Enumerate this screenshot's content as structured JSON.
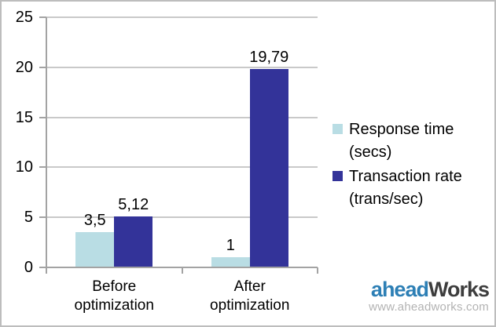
{
  "chart_data": {
    "type": "bar",
    "categories": [
      {
        "lines": [
          "Before",
          "optimization"
        ]
      },
      {
        "lines": [
          "After",
          "optimization"
        ]
      }
    ],
    "series": [
      {
        "name": "Response time (secs)",
        "legend_label": "Response time\n(secs)",
        "color": "#b9dde4",
        "values": [
          3.5,
          1
        ],
        "value_labels": [
          "3,5",
          "1"
        ]
      },
      {
        "name": "Transaction rate (trans/sec)",
        "legend_label": "Transaction rate\n(trans/sec)",
        "color": "#333399",
        "values": [
          5.12,
          19.79
        ],
        "value_labels": [
          "5,12",
          "19,79"
        ]
      }
    ],
    "title": "",
    "xlabel": "",
    "ylabel": "",
    "ylim": [
      0,
      25
    ],
    "yticks": [
      0,
      5,
      10,
      15,
      20,
      25
    ],
    "grid": true,
    "legend_position": "right"
  },
  "colors": {
    "gridline": "#c9c9c9",
    "axis": "#a3a3a3",
    "frame_border": "#bdbdbd",
    "logo_primary": "#2d7fb5",
    "logo_secondary": "#3d3d3d",
    "logo_url": "#b3b3b3"
  },
  "logo": {
    "brand_primary": "ahead",
    "brand_secondary": "Works",
    "url": "www.aheadworks.com"
  }
}
